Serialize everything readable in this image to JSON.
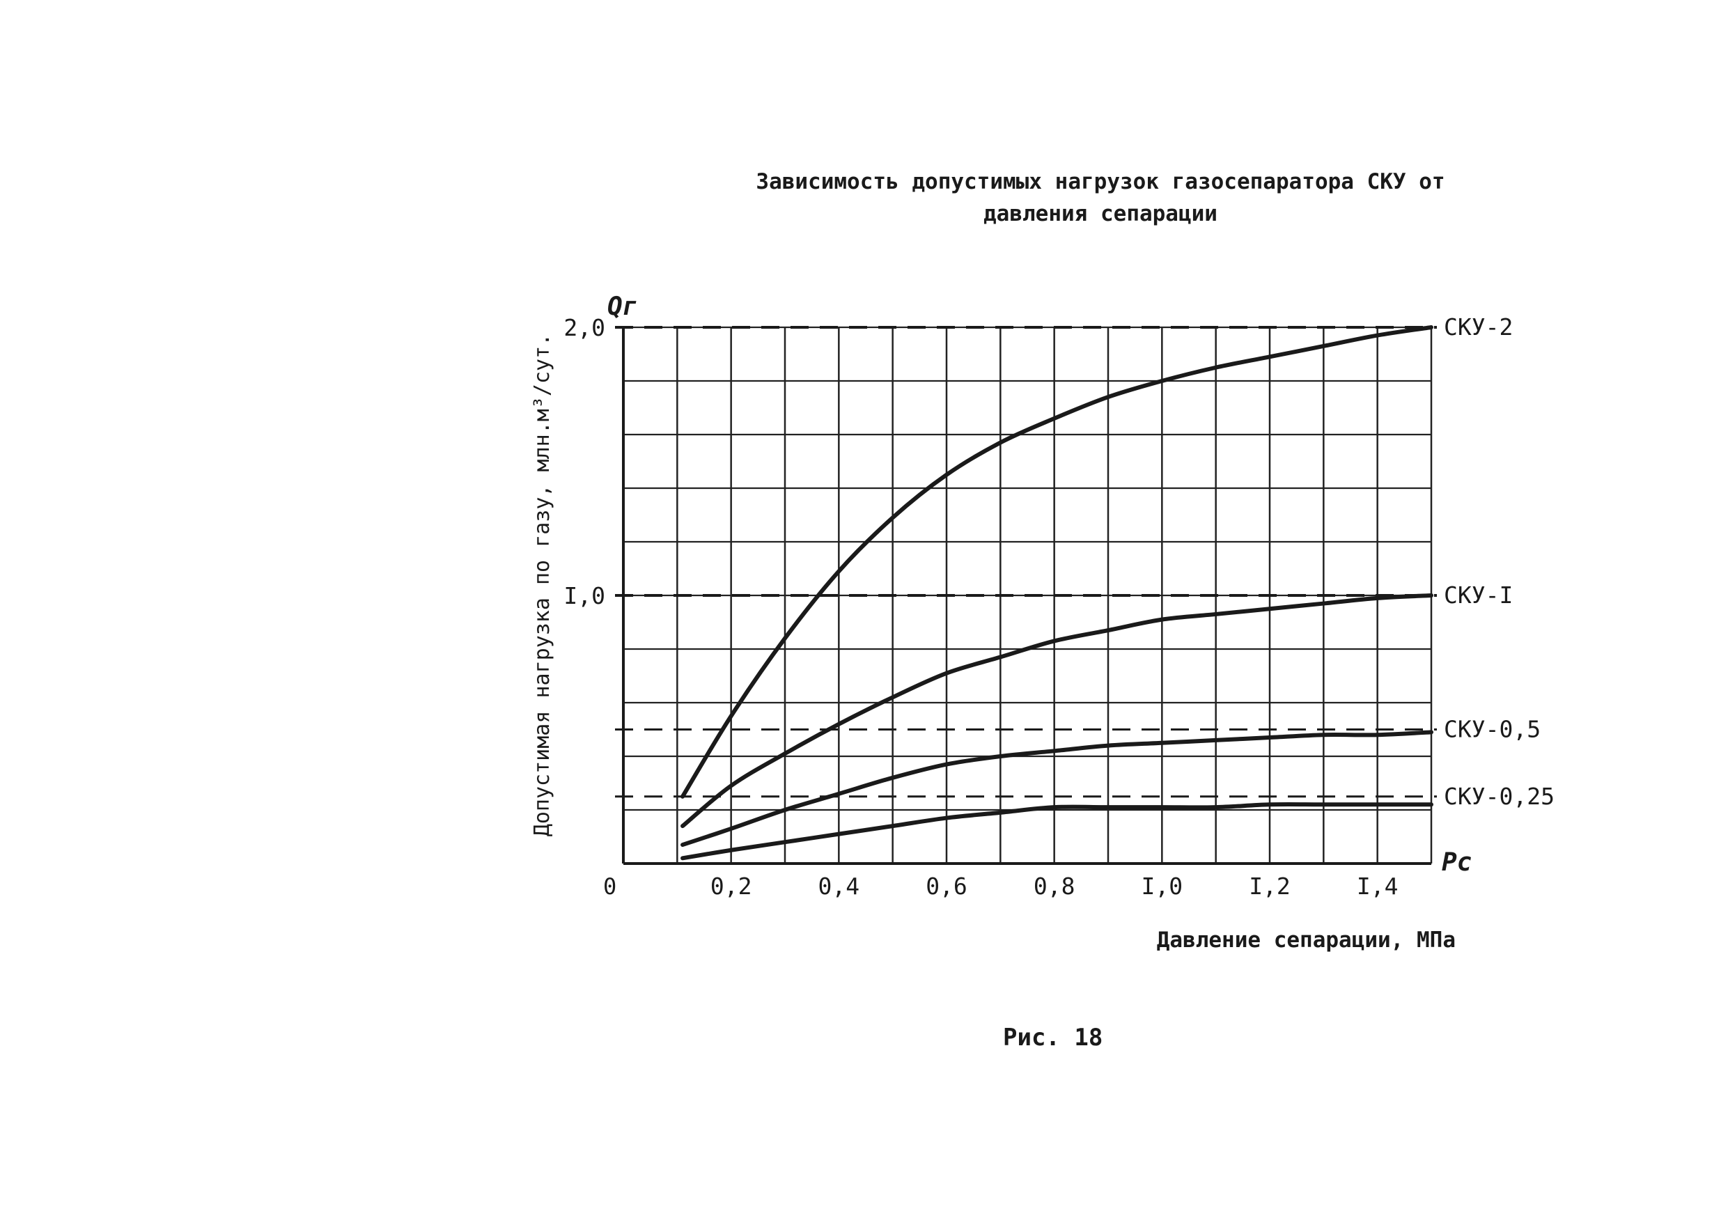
{
  "chart_data": {
    "type": "line",
    "title_line1": "Зависимость допустимых нагрузок газосепаратора СКУ от",
    "title_line2": "давления сепарации",
    "xlabel": "Давление сепарации, МПа",
    "ylabel": "Допустимая нагрузка по газу, млн.м³/сут.",
    "x_axis_symbol": "Pc",
    "y_axis_symbol": "Qг",
    "origin_label": "0",
    "xlim": [
      0,
      1.5
    ],
    "ylim": [
      0,
      2.0
    ],
    "x_ticks": [
      {
        "value": 0.2,
        "label": "0,2"
      },
      {
        "value": 0.4,
        "label": "0,4"
      },
      {
        "value": 0.6,
        "label": "0,6"
      },
      {
        "value": 0.8,
        "label": "0,8"
      },
      {
        "value": 1.0,
        "label": "I,0"
      },
      {
        "value": 1.2,
        "label": "I,2"
      },
      {
        "value": 1.4,
        "label": "I,4"
      }
    ],
    "y_ticks": [
      {
        "value": 1.0,
        "label": "I,0"
      },
      {
        "value": 2.0,
        "label": "2,0"
      }
    ],
    "x_gridlines": [
      0.1,
      0.2,
      0.3,
      0.4,
      0.5,
      0.6,
      0.7,
      0.8,
      0.9,
      1.0,
      1.1,
      1.2,
      1.3,
      1.4,
      1.5
    ],
    "y_gridlines": [
      0.2,
      0.4,
      0.6,
      0.8,
      1.0,
      1.2,
      1.4,
      1.6,
      1.8,
      2.0
    ],
    "grid": true,
    "series": [
      {
        "name": "СКУ-2",
        "limit": 2.0,
        "x": [
          0.11,
          0.2,
          0.3,
          0.4,
          0.5,
          0.6,
          0.7,
          0.8,
          0.9,
          1.0,
          1.1,
          1.2,
          1.3,
          1.4,
          1.5
        ],
        "y": [
          0.25,
          0.55,
          0.84,
          1.09,
          1.29,
          1.45,
          1.57,
          1.66,
          1.74,
          1.8,
          1.85,
          1.89,
          1.93,
          1.97,
          2.0
        ]
      },
      {
        "name": "СКУ-I",
        "limit": 1.0,
        "x": [
          0.11,
          0.2,
          0.3,
          0.4,
          0.5,
          0.6,
          0.7,
          0.8,
          0.9,
          1.0,
          1.1,
          1.2,
          1.3,
          1.4,
          1.5
        ],
        "y": [
          0.14,
          0.29,
          0.41,
          0.52,
          0.62,
          0.71,
          0.77,
          0.83,
          0.87,
          0.91,
          0.93,
          0.95,
          0.97,
          0.99,
          1.0
        ]
      },
      {
        "name": "СКУ-0,5",
        "limit": 0.5,
        "x": [
          0.11,
          0.2,
          0.3,
          0.4,
          0.5,
          0.6,
          0.7,
          0.8,
          0.9,
          1.0,
          1.1,
          1.2,
          1.3,
          1.4,
          1.5
        ],
        "y": [
          0.07,
          0.13,
          0.2,
          0.26,
          0.32,
          0.37,
          0.4,
          0.42,
          0.44,
          0.45,
          0.46,
          0.47,
          0.48,
          0.48,
          0.49
        ]
      },
      {
        "name": "СКУ-0,25",
        "limit": 0.25,
        "x": [
          0.11,
          0.2,
          0.3,
          0.4,
          0.5,
          0.6,
          0.7,
          0.8,
          0.9,
          1.0,
          1.1,
          1.2,
          1.3,
          1.4,
          1.5
        ],
        "y": [
          0.02,
          0.05,
          0.08,
          0.11,
          0.14,
          0.17,
          0.19,
          0.21,
          0.21,
          0.21,
          0.21,
          0.22,
          0.22,
          0.22,
          0.22
        ]
      }
    ],
    "caption": "Рис. 18"
  },
  "colors": {
    "ink": "#1a1a1a",
    "grid": "#222222",
    "background": "#ffffff"
  }
}
